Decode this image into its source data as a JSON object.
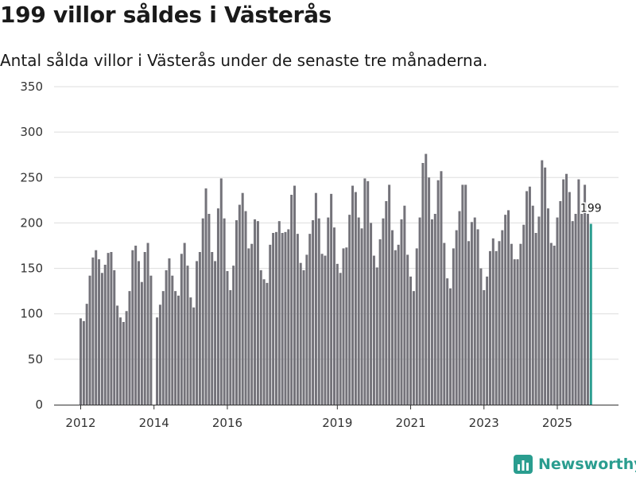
{
  "header": {
    "title": "199 villor såldes i Västerås",
    "subtitle": "Antal sålda villor i Västerås under de senaste tre månaderna."
  },
  "brand": {
    "name": "Newsworthy"
  },
  "colors": {
    "bar": "#74737a",
    "highlight": "#2a9d8f",
    "grid": "#dddddd",
    "axis": "#333333"
  },
  "chart_data": {
    "type": "bar",
    "title": "199 villor såldes i Västerås",
    "subtitle": "Antal sålda villor i Västerås under de senaste tre månaderna.",
    "xlabel": "",
    "ylabel": "",
    "ylim": [
      0,
      350
    ],
    "yticks": [
      0,
      50,
      100,
      150,
      200,
      250,
      300,
      350
    ],
    "xticks": [
      {
        "label": "2012",
        "index": 0
      },
      {
        "label": "2014",
        "index": 24
      },
      {
        "label": "2016",
        "index": 48
      },
      {
        "label": "2019",
        "index": 84
      },
      {
        "label": "2021",
        "index": 108
      },
      {
        "label": "2023",
        "index": 132
      },
      {
        "label": "2025",
        "index": 156
      }
    ],
    "grid": true,
    "highlight_index": 167,
    "highlight_label": "199",
    "values": [
      95,
      92,
      111,
      142,
      162,
      170,
      160,
      145,
      154,
      167,
      168,
      148,
      109,
      96,
      91,
      103,
      125,
      170,
      175,
      158,
      135,
      168,
      178,
      142,
      0,
      96,
      110,
      125,
      148,
      161,
      142,
      125,
      120,
      166,
      178,
      153,
      118,
      107,
      158,
      168,
      205,
      238,
      210,
      168,
      158,
      216,
      249,
      205,
      147,
      126,
      153,
      203,
      220,
      233,
      213,
      172,
      177,
      204,
      202,
      148,
      138,
      134,
      176,
      189,
      190,
      202,
      189,
      190,
      193,
      231,
      241,
      188,
      156,
      148,
      165,
      188,
      203,
      233,
      205,
      166,
      164,
      206,
      232,
      195,
      155,
      145,
      172,
      173,
      209,
      241,
      234,
      206,
      194,
      249,
      246,
      200,
      164,
      151,
      182,
      205,
      224,
      242,
      192,
      170,
      176,
      204,
      219,
      165,
      141,
      125,
      172,
      206,
      266,
      276,
      250,
      204,
      210,
      247,
      257,
      178,
      139,
      128,
      172,
      192,
      213,
      242,
      242,
      180,
      201,
      206,
      193,
      150,
      126,
      141,
      169,
      183,
      169,
      180,
      192,
      209,
      214,
      177,
      160,
      160,
      177,
      198,
      235,
      240,
      219,
      189,
      207,
      269,
      261,
      216,
      178,
      175,
      206,
      224,
      248,
      254,
      234,
      202,
      210,
      248,
      210,
      242,
      210,
      199
    ]
  }
}
